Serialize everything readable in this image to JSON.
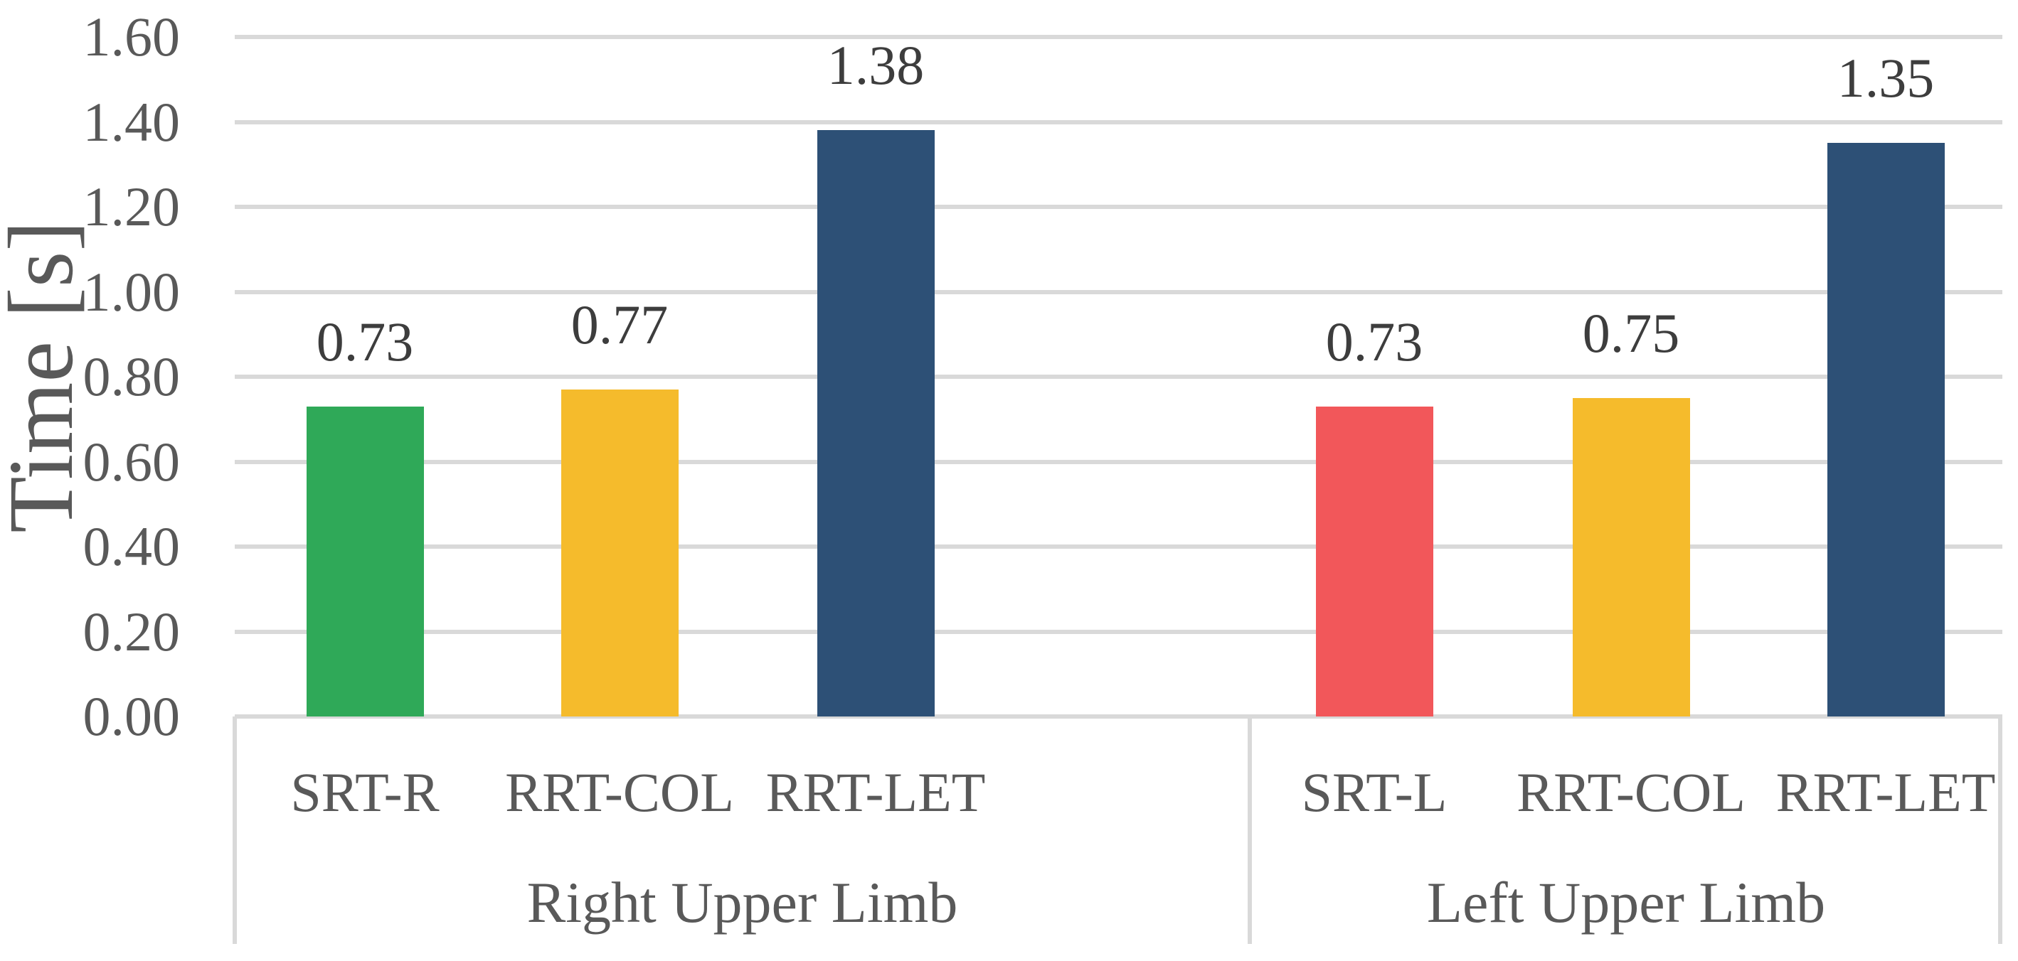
{
  "chart_data": {
    "type": "bar",
    "title": "",
    "ylabel": "Time [s]",
    "ylim": [
      0,
      1.6
    ],
    "ytick_step": 0.2,
    "ytick_labels": [
      "0.00",
      "0.20",
      "0.40",
      "0.60",
      "0.80",
      "1.00",
      "1.20",
      "1.40",
      "1.60"
    ],
    "grid": true,
    "legend": false,
    "groups": [
      {
        "label": "Right Upper Limb",
        "bars": [
          {
            "category": "SRT-R",
            "value": 0.73,
            "label": "0.73",
            "color": "#2FA958"
          },
          {
            "category": "RRT-COL",
            "value": 0.77,
            "label": "0.77",
            "color": "#F5BB2C"
          },
          {
            "category": "RRT-LET",
            "value": 1.38,
            "label": "1.38",
            "color": "#2D5076"
          }
        ]
      },
      {
        "label": "Left Upper Limb",
        "bars": [
          {
            "category": "SRT-L",
            "value": 0.73,
            "label": "0.73",
            "color": "#F2575A"
          },
          {
            "category": "RRT-COL",
            "value": 0.75,
            "label": "0.75",
            "color": "#F5BB2C"
          },
          {
            "category": "RRT-LET",
            "value": 1.35,
            "label": "1.35",
            "color": "#2D5076"
          }
        ]
      }
    ],
    "colors": {
      "gridline": "#D9D9D9",
      "axis_text": "#595959",
      "data_label_text": "#3D3D3D"
    }
  }
}
